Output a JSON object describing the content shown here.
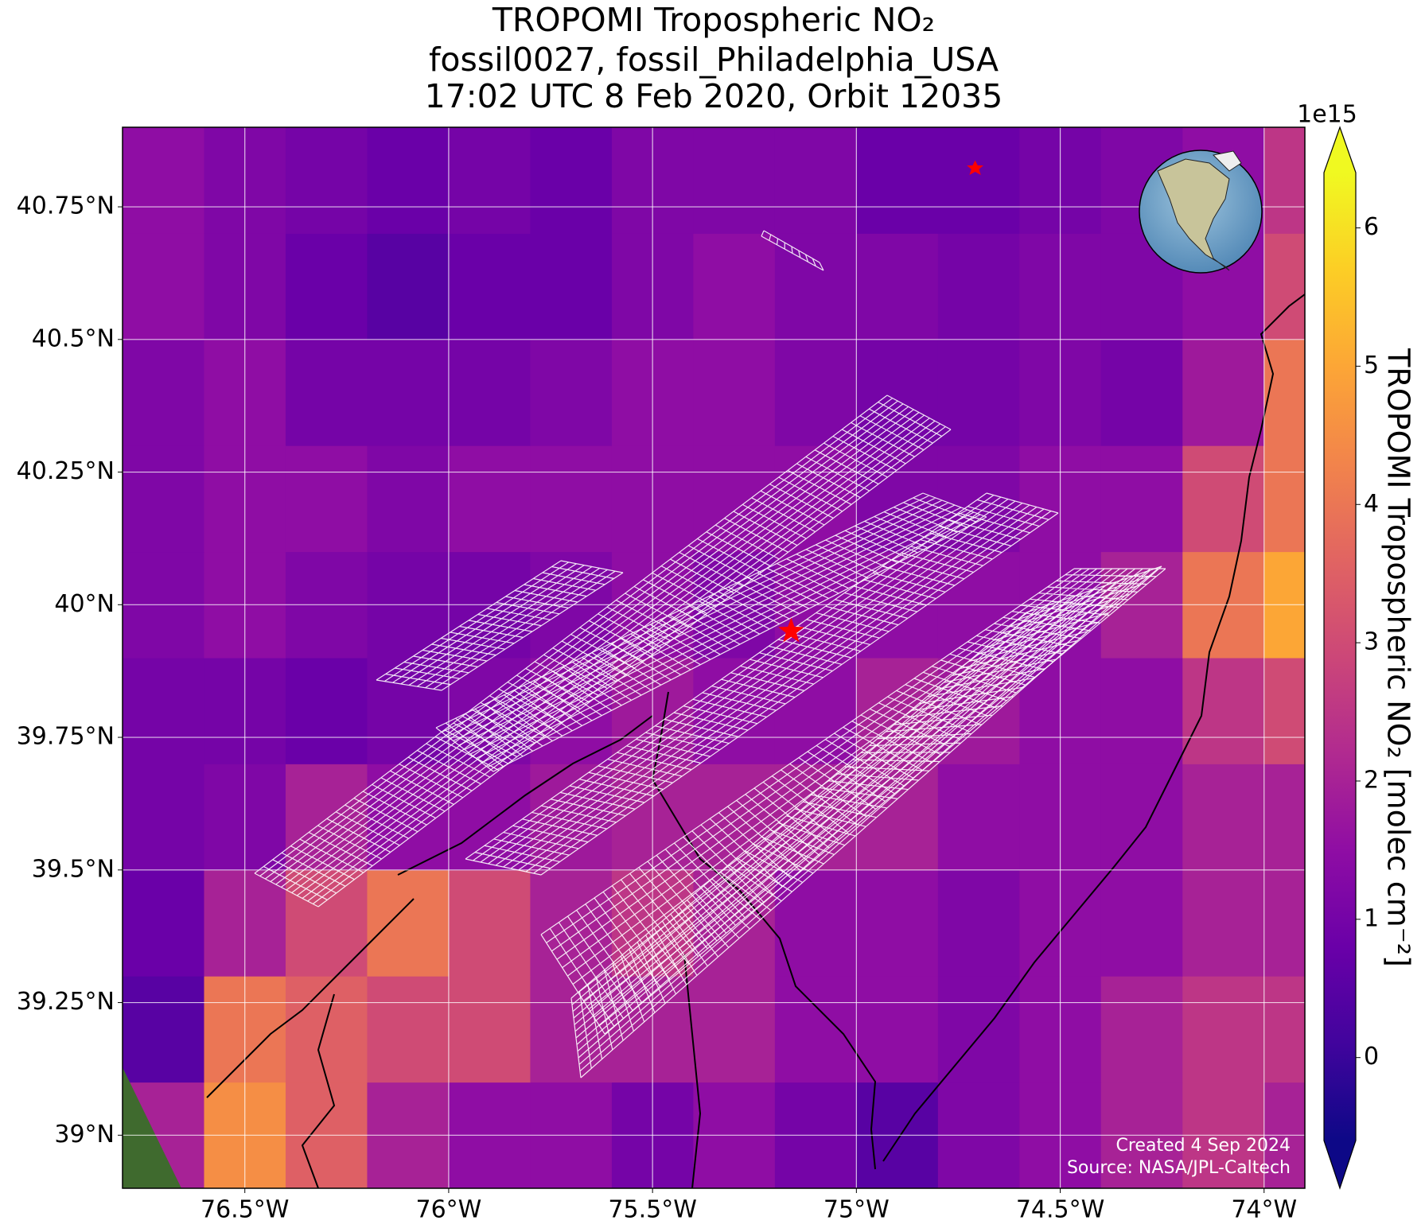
{
  "chart_data": {
    "type": "heatmap",
    "title": [
      "TROPOMI Tropospheric NO₂",
      "fossil0027, fossil_Philadelphia_USA",
      "17:02 UTC 8 Feb 2020, Orbit 12035"
    ],
    "xlim": [
      -76.8,
      -73.9
    ],
    "ylim": [
      38.9,
      40.9
    ],
    "xticks": [
      {
        "value": -76.5,
        "label": "76.5°W"
      },
      {
        "value": -76,
        "label": "76°W"
      },
      {
        "value": -75.5,
        "label": "75.5°W"
      },
      {
        "value": -75,
        "label": "75°W"
      },
      {
        "value": -74.5,
        "label": "74.5°W"
      },
      {
        "value": -74,
        "label": "74°W"
      }
    ],
    "yticks": [
      {
        "value": 39,
        "label": "39°N"
      },
      {
        "value": 39.25,
        "label": "39.25°N"
      },
      {
        "value": 39.5,
        "label": "39.5°N"
      },
      {
        "value": 39.75,
        "label": "39.75°N"
      },
      {
        "value": 40,
        "label": "40°N"
      },
      {
        "value": 40.25,
        "label": "40.25°N"
      },
      {
        "value": 40.5,
        "label": "40.5°N"
      },
      {
        "value": 40.75,
        "label": "40.75°N"
      }
    ],
    "grid": true,
    "colormap": "plasma",
    "lon_edges": [
      -76.8,
      -76.6,
      -76.4,
      -76.2,
      -76.0,
      -75.8,
      -75.6,
      -75.4,
      -75.2,
      -75.0,
      -74.8,
      -74.6,
      -74.4,
      -74.2,
      -74.0,
      -73.9
    ],
    "lat_edges": [
      38.9,
      39.1,
      39.3,
      39.5,
      39.7,
      39.9,
      40.1,
      40.3,
      40.5,
      40.7,
      40.9
    ],
    "values": [
      [
        2,
        4.5,
        3.5,
        2,
        1.5,
        1.5,
        1,
        1.5,
        1,
        0.5,
        1.2,
        1.5,
        2,
        2.5,
        2
      ],
      [
        0.5,
        4,
        3.5,
        3,
        3,
        2,
        2,
        2,
        1.5,
        1.5,
        1.2,
        1.5,
        2,
        2.5,
        2.5
      ],
      [
        0.8,
        2,
        3,
        4,
        3,
        2,
        2.5,
        2,
        1.5,
        1.5,
        1.2,
        1.5,
        1.5,
        2,
        2
      ],
      [
        1,
        1.2,
        2,
        1.5,
        1.5,
        1.8,
        2,
        2,
        2,
        2,
        1.5,
        1.5,
        1.5,
        2,
        2
      ],
      [
        1,
        1,
        0.8,
        1,
        1.2,
        1.5,
        1.8,
        1.5,
        1.5,
        2,
        1.8,
        1.5,
        1.5,
        2.5,
        3
      ],
      [
        1.2,
        1.5,
        1.2,
        1,
        1,
        1.2,
        1.5,
        1.2,
        1.5,
        1.5,
        1.5,
        1.5,
        2,
        4,
        5
      ],
      [
        1.2,
        1.5,
        1.5,
        1.2,
        1.5,
        1.5,
        1.5,
        1.5,
        1.5,
        1.2,
        1.2,
        1.5,
        1.5,
        3,
        4
      ],
      [
        1.2,
        1.5,
        1,
        1,
        1,
        1.2,
        1.5,
        1.5,
        1.2,
        1,
        1,
        1.2,
        1,
        1.8,
        4
      ],
      [
        1.5,
        1.2,
        0.8,
        0.5,
        0.8,
        0.8,
        1.2,
        1.5,
        1.2,
        1.2,
        1,
        1.2,
        1.2,
        1.5,
        3
      ],
      [
        1.5,
        1.2,
        1,
        0.8,
        1,
        0.8,
        1.2,
        1.2,
        1.2,
        0.8,
        0.8,
        1,
        1.2,
        1.5,
        2.5
      ]
    ],
    "site": {
      "lon": -75.16,
      "lat": 39.95
    },
    "colorbar": {
      "label": "TROPOMI Tropospheric NO₂ [molec cm⁻²]",
      "offset_text": "1e15",
      "clim": [
        -0.6,
        6.4
      ],
      "ticks": [
        0,
        1,
        2,
        3,
        4,
        5,
        6
      ]
    },
    "credits": [
      "Created 4 Sep 2024",
      "Source: NASA/JPL-Caltech"
    ]
  }
}
